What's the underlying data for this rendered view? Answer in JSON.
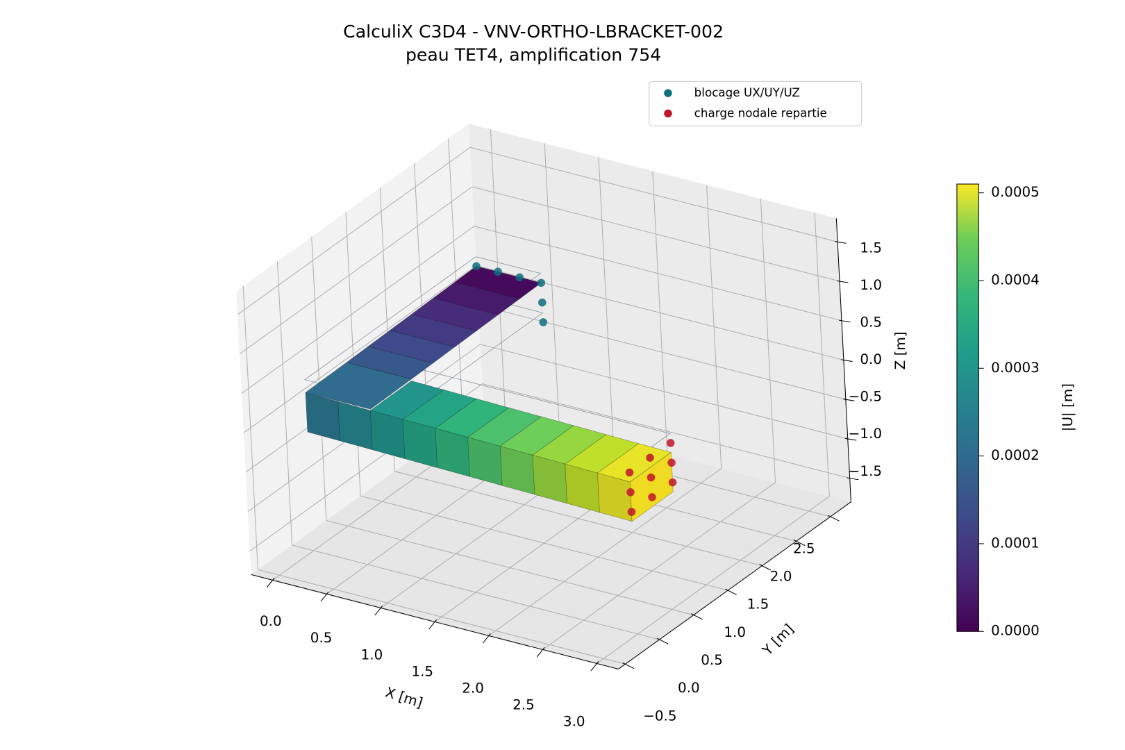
{
  "chart_data": {
    "type": "scatter3d",
    "title": "CalculiX C3D4 - VNV-ORTHO-LBRACKET-002",
    "subtitle": "peau TET4, amplification 754",
    "xlabel": "X [m]",
    "ylabel": "Y [m]",
    "zlabel": "Z [m]",
    "xlim": [
      -0.2,
      3.2
    ],
    "ylim": [
      -0.6,
      2.8
    ],
    "zlim": [
      -1.8,
      1.8
    ],
    "xticks": [
      {
        "value": 0,
        "label": "0.0"
      },
      0.5,
      {
        "value": 1,
        "label": "1.0"
      },
      1.5,
      {
        "value": 2,
        "label": "2.0"
      },
      2.5,
      {
        "value": 3,
        "label": "3.0"
      }
    ],
    "yticks": [
      {
        "value": -0.5,
        "label": "−0.5"
      },
      {
        "value": 0,
        "label": "0.0"
      },
      0.5,
      {
        "value": 1,
        "label": "1.0"
      },
      1.5,
      {
        "value": 2,
        "label": "2.0"
      },
      2.5
    ],
    "zticks": [
      {
        "value": -1.5,
        "label": "−1.5"
      },
      {
        "value": -1,
        "label": "−1.0"
      },
      {
        "value": -0.5,
        "label": "−0.5"
      },
      {
        "value": 0,
        "label": "0.0"
      },
      0.5,
      {
        "value": 1,
        "label": "1.0"
      },
      1.5
    ],
    "grid": true,
    "legend": "upper right",
    "series": [
      {
        "name": "blocage UX/UY/UZ",
        "color": "#0e6f7e",
        "x": [
          0,
          0.2,
          0.4,
          0.6,
          0.6,
          0.6
        ],
        "y": [
          2.5,
          2.5,
          2.5,
          2.5,
          2.5,
          2.5
        ],
        "z": [
          0.25,
          0.25,
          0.25,
          0.25,
          0,
          -0.25
        ]
      },
      {
        "name": "charge nodale repartie",
        "color": "#c0152a",
        "x": [
          3,
          3,
          3,
          3,
          3,
          3,
          3,
          3,
          3
        ],
        "y": [
          0,
          0.3,
          0.6,
          0,
          0.3,
          0.6,
          0,
          0.3,
          0.6
        ],
        "z": [
          0.25,
          0.25,
          0.25,
          0,
          0,
          0,
          -0.25,
          -0.25,
          -0.25
        ]
      }
    ],
    "colorbar": {
      "label": "|U| [m]",
      "colormap": "viridis",
      "lim": [
        0,
        0.00051
      ],
      "ticks": [
        {
          "value": 0,
          "label": "0.0000"
        },
        0.0001,
        0.0002,
        0.0003,
        0.0004,
        0.0005
      ]
    }
  }
}
